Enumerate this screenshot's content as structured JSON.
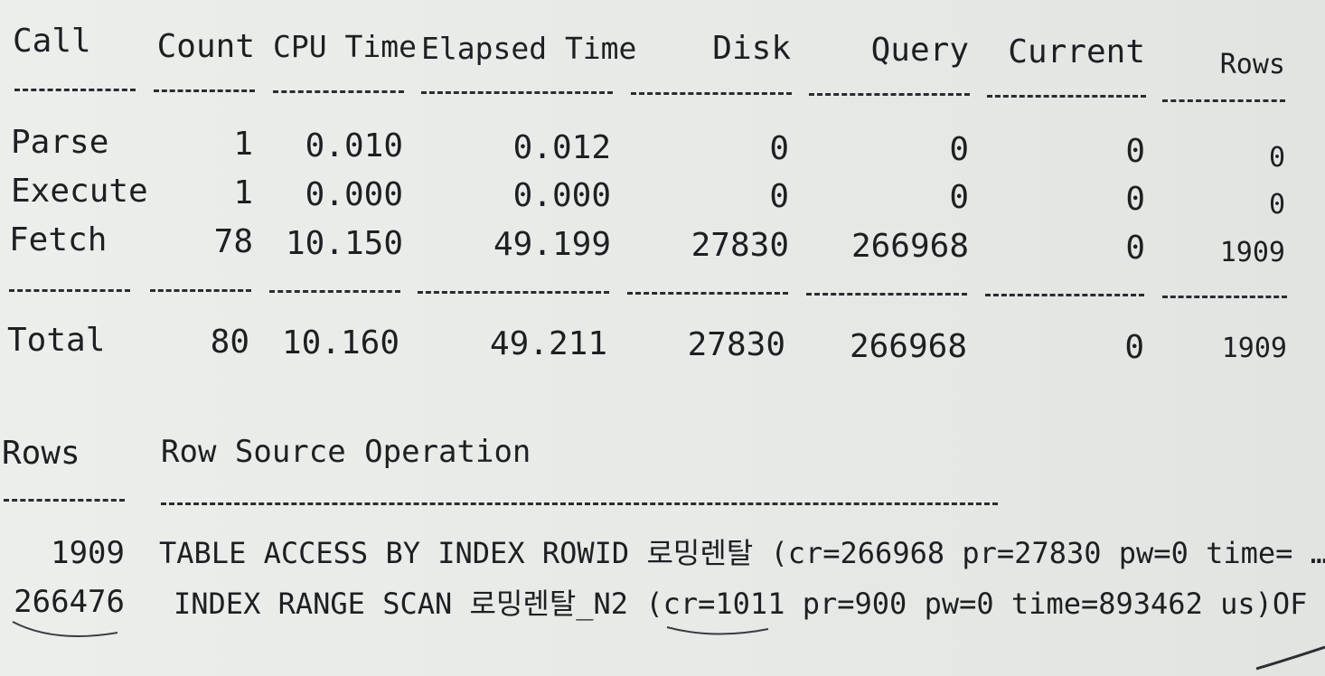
{
  "tkprof": {
    "headers": {
      "call": "Call",
      "count": "Count",
      "cpu": "CPU Time",
      "elapsed": "Elapsed Time",
      "disk": "Disk",
      "query": "Query",
      "current": "Current",
      "rows": "Rows"
    },
    "rows": [
      {
        "call": "Parse",
        "count": "1",
        "cpu": "0.010",
        "elapsed": "0.012",
        "disk": "0",
        "query": "0",
        "current": "0",
        "rows": "0"
      },
      {
        "call": "Execute",
        "count": "1",
        "cpu": "0.000",
        "elapsed": "0.000",
        "disk": "0",
        "query": "0",
        "current": "0",
        "rows": "0"
      },
      {
        "call": "Fetch",
        "count": "78",
        "cpu": "10.150",
        "elapsed": "49.199",
        "disk": "27830",
        "query": "266968",
        "current": "0",
        "rows": "1909"
      }
    ],
    "total": {
      "call": "Total",
      "count": "80",
      "cpu": "10.160",
      "elapsed": "49.211",
      "disk": "27830",
      "query": "266968",
      "current": "0",
      "rows": "1909"
    }
  },
  "row_source": {
    "headers": {
      "rows": "Rows",
      "operation": "Row Source Operation"
    },
    "lines": [
      {
        "rows": "1909",
        "operation": "TABLE ACCESS BY INDEX ROWID 로밍렌탈 (cr=266968 pr=27830 pw=0 time= … )"
      },
      {
        "rows": "266476",
        "operation": "INDEX RANGE SCAN 로밍렌탈_N2 (cr=1011 pr=900 pw=0 time=893462 us)OF …"
      }
    ]
  }
}
